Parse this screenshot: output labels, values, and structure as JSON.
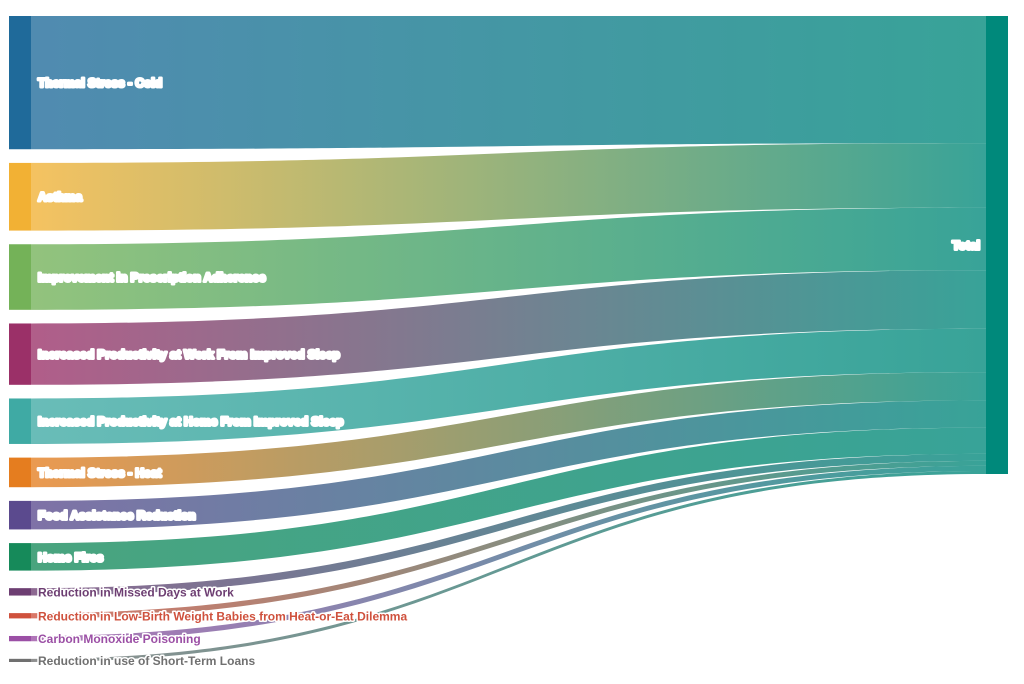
{
  "chart_data": {
    "type": "sankey",
    "target": {
      "label": "Total",
      "color": "#00897B"
    },
    "sources": [
      {
        "label": "Thermal Stress - Cold",
        "value": 126,
        "color": "#1F6A9A"
      },
      {
        "label": "Asthma",
        "value": 64,
        "color": "#F2B134"
      },
      {
        "label": "Improvement in Prescription Adherence",
        "value": 62,
        "color": "#74B258"
      },
      {
        "label": "Increased Productivity at Work From Improved Sleep",
        "value": 58,
        "color": "#9B3068"
      },
      {
        "label": "Increased Productivity at Home From Improved Sleep",
        "value": 43,
        "color": "#3FAAA4"
      },
      {
        "label": "Thermal Stress - Heat",
        "value": 28,
        "color": "#E57D1F"
      },
      {
        "label": "Food Assistance Reduction",
        "value": 27,
        "color": "#5B4A8E"
      },
      {
        "label": "Home Fires",
        "value": 26,
        "color": "#168A5A"
      },
      {
        "label": "Reduction in Missed Days at Work",
        "value": 7,
        "color": "#6D3E72"
      },
      {
        "label": "Reduction in Low-Birth Weight Babies from Heat-or-Eat Dilemma",
        "value": 5,
        "color": "#CF513D"
      },
      {
        "label": "Carbon Monoxide Poisoning",
        "value": 5,
        "color": "#9B4FA5"
      },
      {
        "label": "Reduction in use of Short-Term Loans",
        "value": 3,
        "color": "#707070"
      }
    ]
  }
}
